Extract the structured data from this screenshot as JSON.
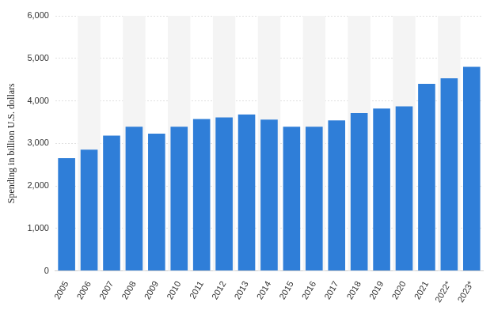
{
  "chart_data": {
    "type": "bar",
    "y_label": "Spending in billion U.S. dollars",
    "categories": [
      "2005",
      "2006",
      "2007",
      "2008",
      "2009",
      "2010",
      "2011",
      "2012",
      "2013",
      "2014",
      "2015",
      "2016",
      "2017",
      "2018",
      "2019",
      "2020",
      "2021",
      "2022*",
      "2023*"
    ],
    "values": [
      2650,
      2850,
      3180,
      3390,
      3230,
      3390,
      3570,
      3610,
      3680,
      3560,
      3390,
      3390,
      3540,
      3710,
      3820,
      3870,
      4400,
      4530,
      4800
    ],
    "color": "#2f7ed8",
    "ylim": [
      0,
      6000
    ],
    "yticks": [
      0,
      {
        "value": 1000,
        "label": "1,000"
      },
      {
        "value": 2000,
        "label": "2,000"
      },
      {
        "value": 3000,
        "label": "3,000"
      },
      {
        "value": 4000,
        "label": "4,000"
      },
      {
        "value": 5000,
        "label": "5,000"
      },
      {
        "value": 6000,
        "label": "6,000"
      }
    ],
    "grid": true
  }
}
